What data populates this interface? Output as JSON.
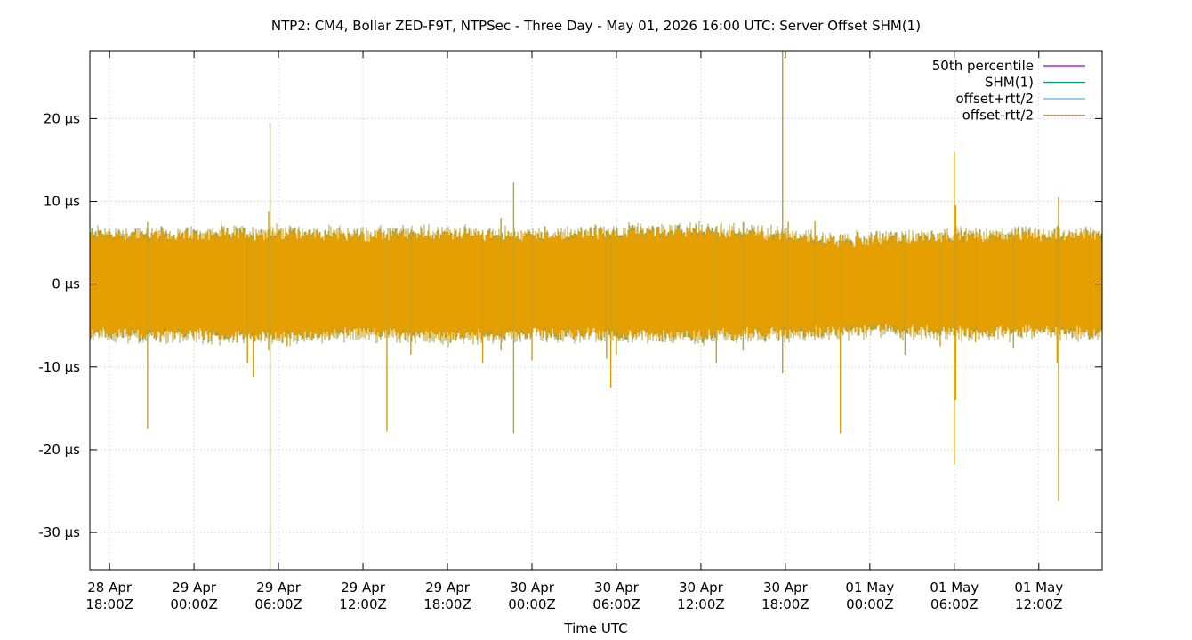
{
  "chart_data": {
    "type": "line",
    "title": "NTP2: CM4, Bollar ZED-F9T, NTPSec - Three Day - May 01, 2026 16:00 UTC: Server Offset SHM(1)",
    "xlabel": "Time UTC",
    "ylabel": "",
    "x_unit": "hours since 28 Apr 18:00Z",
    "xlim": [
      -1.4,
      70.5
    ],
    "ylim": [
      -34.5,
      28.2
    ],
    "y_ticks": [
      {
        "value": 20,
        "label": "20 µs"
      },
      {
        "value": 10,
        "label": "10 µs"
      },
      {
        "value": 0,
        "label": "0 µs"
      },
      {
        "value": -10,
        "label": "-10 µs"
      },
      {
        "value": -20,
        "label": "-20 µs"
      },
      {
        "value": -30,
        "label": "-30 µs"
      }
    ],
    "x_ticks": [
      {
        "value": 0,
        "line1": "28 Apr",
        "line2": "18:00Z"
      },
      {
        "value": 6,
        "line1": "29 Apr",
        "line2": "00:00Z"
      },
      {
        "value": 12,
        "line1": "29 Apr",
        "line2": "06:00Z"
      },
      {
        "value": 18,
        "line1": "29 Apr",
        "line2": "12:00Z"
      },
      {
        "value": 24,
        "line1": "29 Apr",
        "line2": "18:00Z"
      },
      {
        "value": 30,
        "line1": "30 Apr",
        "line2": "00:00Z"
      },
      {
        "value": 36,
        "line1": "30 Apr",
        "line2": "06:00Z"
      },
      {
        "value": 42,
        "line1": "30 Apr",
        "line2": "12:00Z"
      },
      {
        "value": 48,
        "line1": "30 Apr",
        "line2": "18:00Z"
      },
      {
        "value": 54,
        "line1": "01 May",
        "line2": "00:00Z"
      },
      {
        "value": 60,
        "line1": "01 May",
        "line2": "06:00Z"
      },
      {
        "value": 66,
        "line1": "01 May",
        "line2": "12:00Z"
      }
    ],
    "grid": true,
    "legend_position": "top-right",
    "series": [
      {
        "name": "50th percentile",
        "color": "#9400d3"
      },
      {
        "name": "SHM(1)",
        "color": "#009e73"
      },
      {
        "name": "offset+rtt/2",
        "color": "#56b4e9"
      },
      {
        "name": "offset-rtt/2",
        "color": "#e69f00"
      }
    ],
    "band": {
      "color": "#e69f00",
      "edge_color": "#a8a040",
      "points": [
        {
          "x": -1.4,
          "lo": -5.0,
          "hi": 5.2
        },
        {
          "x": 6,
          "lo": -5.3,
          "hi": 5.0
        },
        {
          "x": 12,
          "lo": -5.5,
          "hi": 5.3
        },
        {
          "x": 18,
          "lo": -5.0,
          "hi": 5.0
        },
        {
          "x": 24,
          "lo": -5.5,
          "hi": 5.2
        },
        {
          "x": 30,
          "lo": -5.0,
          "hi": 5.0
        },
        {
          "x": 36,
          "lo": -5.2,
          "hi": 5.3
        },
        {
          "x": 42,
          "lo": -5.3,
          "hi": 5.5
        },
        {
          "x": 48,
          "lo": -5.0,
          "hi": 5.2
        },
        {
          "x": 52,
          "lo": -4.8,
          "hi": 4.2
        },
        {
          "x": 54,
          "lo": -4.5,
          "hi": 4.5
        },
        {
          "x": 60,
          "lo": -5.0,
          "hi": 5.0
        },
        {
          "x": 66,
          "lo": -4.8,
          "hi": 5.0
        },
        {
          "x": 70.5,
          "lo": -5.0,
          "hi": 5.2
        }
      ]
    },
    "spikes": [
      {
        "x": 2.7,
        "lo": -17.5,
        "hi": 7.5
      },
      {
        "x": 9.8,
        "lo": -9.5,
        "hi": 6.0
      },
      {
        "x": 10.2,
        "lo": -11.2,
        "hi": 6.0
      },
      {
        "x": 11.4,
        "lo": -34.5,
        "hi": 19.5
      },
      {
        "x": 11.3,
        "lo": -8.0,
        "hi": 8.8
      },
      {
        "x": 12.6,
        "lo": -7.5,
        "hi": 6.2
      },
      {
        "x": 19.7,
        "lo": -17.8,
        "hi": 6.0
      },
      {
        "x": 21.4,
        "lo": -8.5,
        "hi": 6.0
      },
      {
        "x": 26.5,
        "lo": -9.5,
        "hi": 6.5
      },
      {
        "x": 27.8,
        "lo": -8.0,
        "hi": 8.0
      },
      {
        "x": 28.7,
        "lo": -18.0,
        "hi": 12.3
      },
      {
        "x": 30.0,
        "lo": -9.2,
        "hi": 6.0
      },
      {
        "x": 35.3,
        "lo": -9.0,
        "hi": 6.5
      },
      {
        "x": 35.6,
        "lo": -12.5,
        "hi": 6.0
      },
      {
        "x": 36.0,
        "lo": -8.5,
        "hi": 6.5
      },
      {
        "x": 43.1,
        "lo": -9.5,
        "hi": 7.0
      },
      {
        "x": 45.0,
        "lo": -8.0,
        "hi": 7.5
      },
      {
        "x": 47.8,
        "lo": -10.8,
        "hi": 28.2
      },
      {
        "x": 48.2,
        "lo": -6.5,
        "hi": 7.5
      },
      {
        "x": 50.1,
        "lo": -6.0,
        "hi": 7.6
      },
      {
        "x": 51.9,
        "lo": -18.0,
        "hi": 6.0
      },
      {
        "x": 56.5,
        "lo": -8.5,
        "hi": 6.0
      },
      {
        "x": 59.0,
        "lo": -7.5,
        "hi": 6.2
      },
      {
        "x": 60.0,
        "lo": -21.8,
        "hi": 16.0
      },
      {
        "x": 60.1,
        "lo": -14.0,
        "hi": 9.5
      },
      {
        "x": 61.5,
        "lo": -7.0,
        "hi": 5.5
      },
      {
        "x": 64.2,
        "lo": -7.8,
        "hi": 6.0
      },
      {
        "x": 67.4,
        "lo": -26.2,
        "hi": 10.5
      },
      {
        "x": 67.3,
        "lo": -9.5,
        "hi": 7.0
      },
      {
        "x": 69.7,
        "lo": -6.5,
        "hi": 6.0
      }
    ]
  }
}
